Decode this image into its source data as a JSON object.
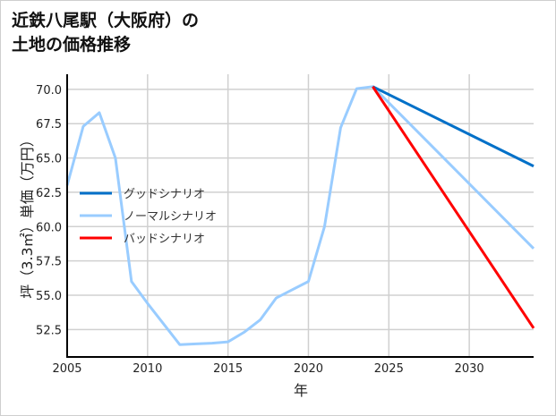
{
  "chart_data": {
    "type": "line",
    "title_lines": [
      "近鉄八尾駅（大阪府）の",
      "土地の価格推移"
    ],
    "xlabel": "年",
    "ylabel": "坪（3.3㎡）単価（万円）",
    "xlim": [
      2005,
      2034
    ],
    "ylim": [
      50.5,
      71.1
    ],
    "xticks": [
      2005,
      2010,
      2015,
      2020,
      2025,
      2030
    ],
    "xtick_labels": [
      "2005",
      "2010",
      "2015",
      "2020",
      "2025",
      "2030"
    ],
    "yticks": [
      52.5,
      55.0,
      57.5,
      60.0,
      62.5,
      65.0,
      67.5,
      70.0
    ],
    "ytick_labels": [
      "52.5",
      "55.0",
      "57.5",
      "60.0",
      "62.5",
      "65.0",
      "67.5",
      "70.0"
    ],
    "grid": true,
    "legend_position": "center-left",
    "series": [
      {
        "name": "グッドシナリオ",
        "color": "#0070c8",
        "x": [
          2024,
          2034
        ],
        "y": [
          70.2,
          64.4
        ]
      },
      {
        "name": "ノーマルシナリオ",
        "color": "#99ccff",
        "x": [
          2005,
          2006,
          2007,
          2008,
          2009,
          2010,
          2011,
          2012,
          2013,
          2014,
          2015,
          2016,
          2017,
          2018,
          2019,
          2020,
          2021,
          2022,
          2023,
          2024,
          2034
        ],
        "y": [
          63.0,
          67.3,
          68.3,
          65.0,
          56.0,
          54.4,
          52.9,
          51.4,
          51.45,
          51.5,
          51.6,
          52.3,
          53.2,
          54.8,
          55.4,
          56.0,
          60.0,
          67.2,
          70.05,
          70.2,
          58.4
        ]
      },
      {
        "name": "バッドシナリオ",
        "color": "#ff0000",
        "x": [
          2024,
          2034
        ],
        "y": [
          70.2,
          52.6
        ]
      }
    ]
  }
}
